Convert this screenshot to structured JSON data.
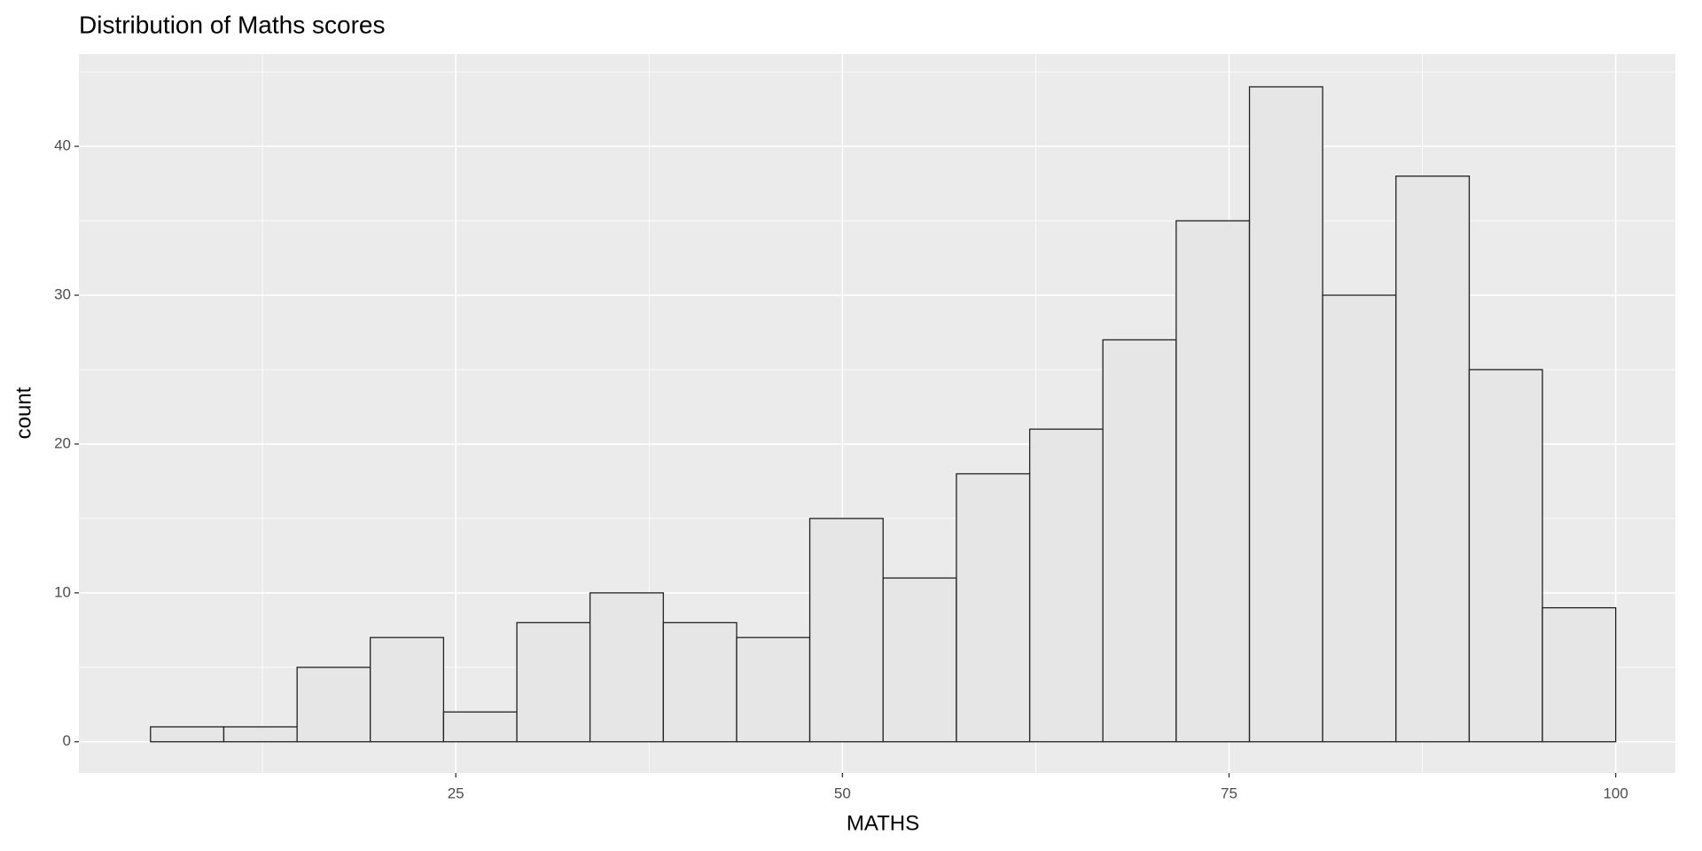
{
  "chart_data": {
    "type": "histogram",
    "title": "Distribution of Maths scores",
    "x_label": "MATHS",
    "y_label": "count",
    "bins": [
      5.26,
      10.0,
      14.74,
      19.47,
      24.21,
      28.95,
      33.68,
      38.42,
      43.16,
      47.89,
      52.63,
      57.37,
      62.11,
      66.84,
      71.58,
      76.32,
      81.05,
      85.79,
      90.53,
      95.26,
      100
    ],
    "values": [
      1,
      1,
      5,
      7,
      2,
      8,
      10,
      8,
      7,
      15,
      11,
      18,
      21,
      27,
      35,
      44,
      30,
      38,
      25,
      9
    ],
    "color": "#e6e6e6",
    "edge_color": "#222222",
    "xlim": [
      0.63,
      103.86
    ],
    "xticks": [
      25,
      50,
      75,
      100
    ],
    "xminorticks": [
      12.5,
      37.5,
      62.5,
      87.5
    ],
    "ylim": [
      -2.1,
      46.2
    ],
    "yticks": [
      0,
      10,
      20,
      30,
      40
    ],
    "yminorticks": [
      5,
      15,
      25,
      35,
      45
    ],
    "grid": true
  }
}
